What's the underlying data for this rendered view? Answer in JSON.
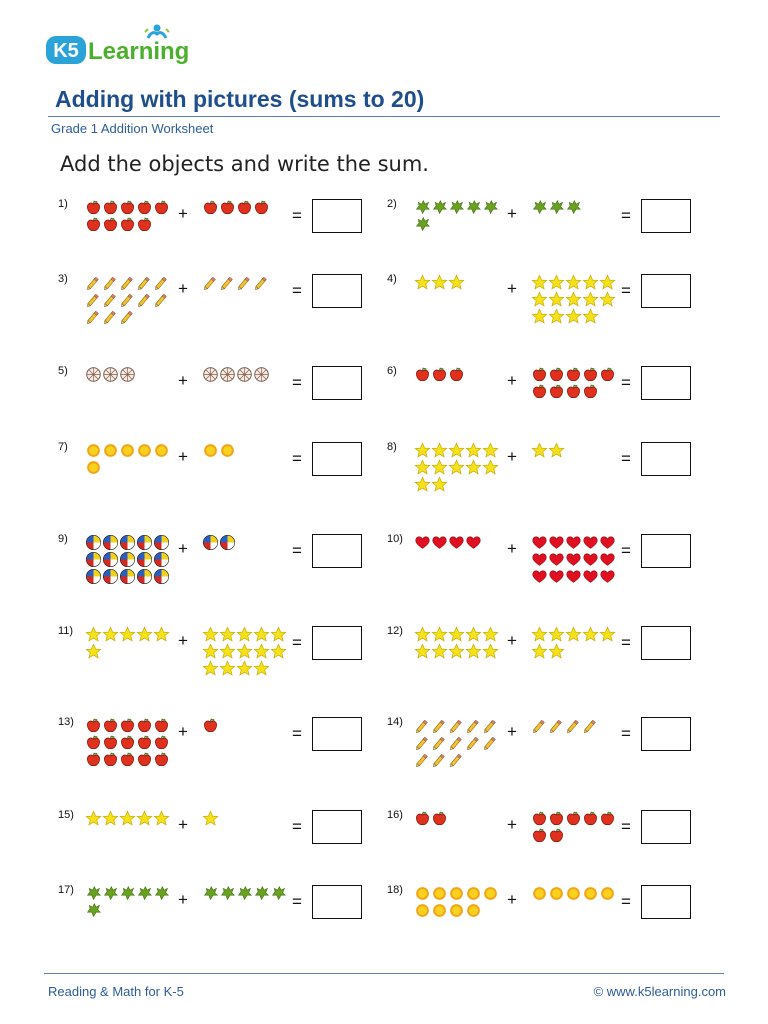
{
  "brand": {
    "logo_text": "K5 Learning",
    "logo_k": "K5",
    "logo_word": "Learning"
  },
  "header": {
    "title": "Adding with pictures (sums to 20)",
    "subtitle": "Grade 1 Addition Worksheet"
  },
  "instructions": "Add the objects and write the sum.",
  "symbols": {
    "plus": "+",
    "equals": "="
  },
  "colors": {
    "title_blue": "#1f4e8c",
    "rule_blue": "#5b7fb3"
  },
  "problems": [
    {
      "label": "1)",
      "object": "apple",
      "left": 9,
      "right": 4
    },
    {
      "label": "2)",
      "object": "leaf",
      "left": 6,
      "right": 3
    },
    {
      "label": "3)",
      "object": "pencil",
      "left": 13,
      "right": 4
    },
    {
      "label": "4)",
      "object": "star",
      "left": 3,
      "right": 14
    },
    {
      "label": "5)",
      "object": "ball",
      "left": 3,
      "right": 4
    },
    {
      "label": "6)",
      "object": "apple",
      "left": 3,
      "right": 9
    },
    {
      "label": "7)",
      "object": "sun",
      "left": 6,
      "right": 2
    },
    {
      "label": "8)",
      "object": "star",
      "left": 12,
      "right": 2
    },
    {
      "label": "9)",
      "object": "beachball",
      "left": 15,
      "right": 2
    },
    {
      "label": "10)",
      "object": "heart",
      "left": 4,
      "right": 15
    },
    {
      "label": "11)",
      "object": "star",
      "left": 6,
      "right": 14
    },
    {
      "label": "12)",
      "object": "star",
      "left": 10,
      "right": 7
    },
    {
      "label": "13)",
      "object": "apple",
      "left": 15,
      "right": 1
    },
    {
      "label": "14)",
      "object": "pencil",
      "left": 13,
      "right": 4
    },
    {
      "label": "15)",
      "object": "star",
      "left": 5,
      "right": 1
    },
    {
      "label": "16)",
      "object": "apple",
      "left": 2,
      "right": 7
    },
    {
      "label": "17)",
      "object": "leaf",
      "left": 6,
      "right": 5
    },
    {
      "label": "18)",
      "object": "sun",
      "left": 9,
      "right": 5
    }
  ],
  "footer": {
    "left": "Reading & Math for K-5",
    "right": "©  www.k5learning.com"
  }
}
